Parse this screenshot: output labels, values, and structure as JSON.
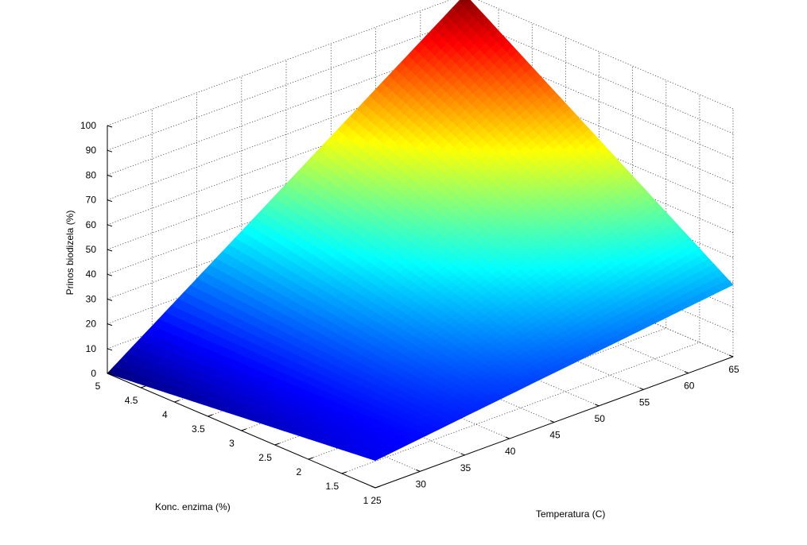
{
  "chart_data": {
    "type": "surface",
    "xlabel": "Temperatura (C)",
    "ylabel": "Konc. enzima (%)",
    "zlabel": "Prinos biodizela (%)",
    "xlim": [
      25,
      65
    ],
    "ylim": [
      1,
      5
    ],
    "zlim": [
      0,
      100
    ],
    "x_ticks": [
      "25",
      "30",
      "35",
      "40",
      "45",
      "50",
      "55",
      "60",
      "65"
    ],
    "y_ticks": [
      "1",
      "1.5",
      "2",
      "2.5",
      "3",
      "3.5",
      "4",
      "4.5",
      "5"
    ],
    "z_ticks": [
      "0",
      "10",
      "20",
      "30",
      "40",
      "50",
      "60",
      "70",
      "80",
      "90",
      "100"
    ],
    "corner_values": [
      {
        "temperature": 25,
        "enzyme": 1,
        "yield": 11
      },
      {
        "temperature": 65,
        "enzyme": 1,
        "yield": 29
      },
      {
        "temperature": 25,
        "enzyme": 5,
        "yield": 0
      },
      {
        "temperature": 65,
        "enzyme": 5,
        "yield": 100
      }
    ],
    "colormap": "jet",
    "grid": true
  }
}
